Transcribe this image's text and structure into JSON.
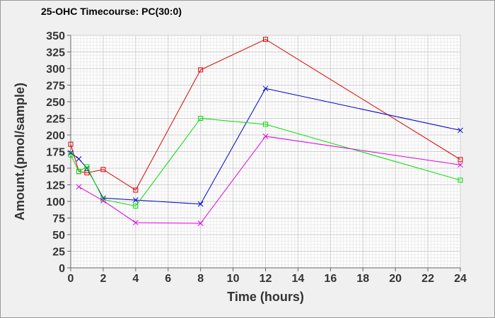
{
  "chart_data": {
    "type": "line",
    "title": "25-OHC Timecourse: PC(30:0)",
    "xlabel": "Time (hours)",
    "ylabel": "Amount.(pmol/sample)",
    "xlim": [
      0,
      24
    ],
    "ylim": [
      0,
      350
    ],
    "x_ticks": [
      0,
      2,
      4,
      6,
      8,
      10,
      12,
      14,
      16,
      18,
      20,
      22,
      24
    ],
    "y_ticks": [
      0,
      25,
      50,
      75,
      100,
      125,
      150,
      175,
      200,
      225,
      250,
      275,
      300,
      325,
      350
    ],
    "grid": true,
    "legend": "none",
    "series": [
      {
        "name": "red-square",
        "color": "#dd0000",
        "marker": "square",
        "x": [
          0,
          0.5,
          1,
          2,
          4,
          8,
          12,
          24
        ],
        "y": [
          186,
          145,
          143,
          148,
          117,
          298,
          344,
          163
        ]
      },
      {
        "name": "blue-cross",
        "color": "#0000cc",
        "marker": "x",
        "x": [
          0,
          0.5,
          1,
          2,
          4,
          8,
          12,
          24
        ],
        "y": [
          173,
          164,
          150,
          105,
          102,
          96,
          270,
          207
        ]
      },
      {
        "name": "green-square",
        "color": "#00dd00",
        "marker": "square",
        "x": [
          0,
          0.5,
          1,
          2,
          4,
          8,
          12,
          24
        ],
        "y": [
          170,
          145,
          152,
          103,
          93,
          225,
          216,
          132
        ]
      },
      {
        "name": "magenta-cross",
        "color": "#dd00dd",
        "marker": "x",
        "x": [
          0.5,
          2,
          4,
          8,
          12,
          24
        ],
        "y": [
          122,
          101,
          68,
          67,
          198,
          155
        ]
      }
    ]
  }
}
